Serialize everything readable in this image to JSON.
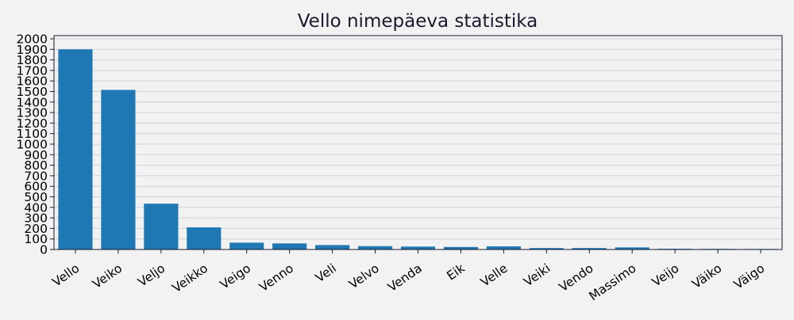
{
  "chart_data": {
    "type": "bar",
    "title": "Vello nimepäeva statistika",
    "xlabel": "",
    "ylabel": "",
    "categories": [
      "Vello",
      "Veiko",
      "Veljo",
      "Veikko",
      "Veigo",
      "Venno",
      "Veli",
      "Velvo",
      "Venda",
      "Eik",
      "Velle",
      "Veiki",
      "Vendo",
      "Massimo",
      "Veijo",
      "Väiko",
      "Väigo"
    ],
    "values": [
      1900,
      1515,
      435,
      210,
      65,
      58,
      42,
      32,
      28,
      24,
      30,
      14,
      14,
      20,
      7,
      6,
      5
    ],
    "ylim": [
      0,
      2030
    ],
    "yticks": [
      0,
      100,
      200,
      300,
      400,
      500,
      600,
      700,
      800,
      900,
      1000,
      1100,
      1200,
      1300,
      1400,
      1500,
      1600,
      1700,
      1800,
      1900,
      2000
    ],
    "grid": true,
    "colors": {
      "bar": "#1f77b4",
      "background": "#f2f2f2",
      "grid": "#cdd3dd",
      "axis": "#1a1a2e"
    }
  }
}
